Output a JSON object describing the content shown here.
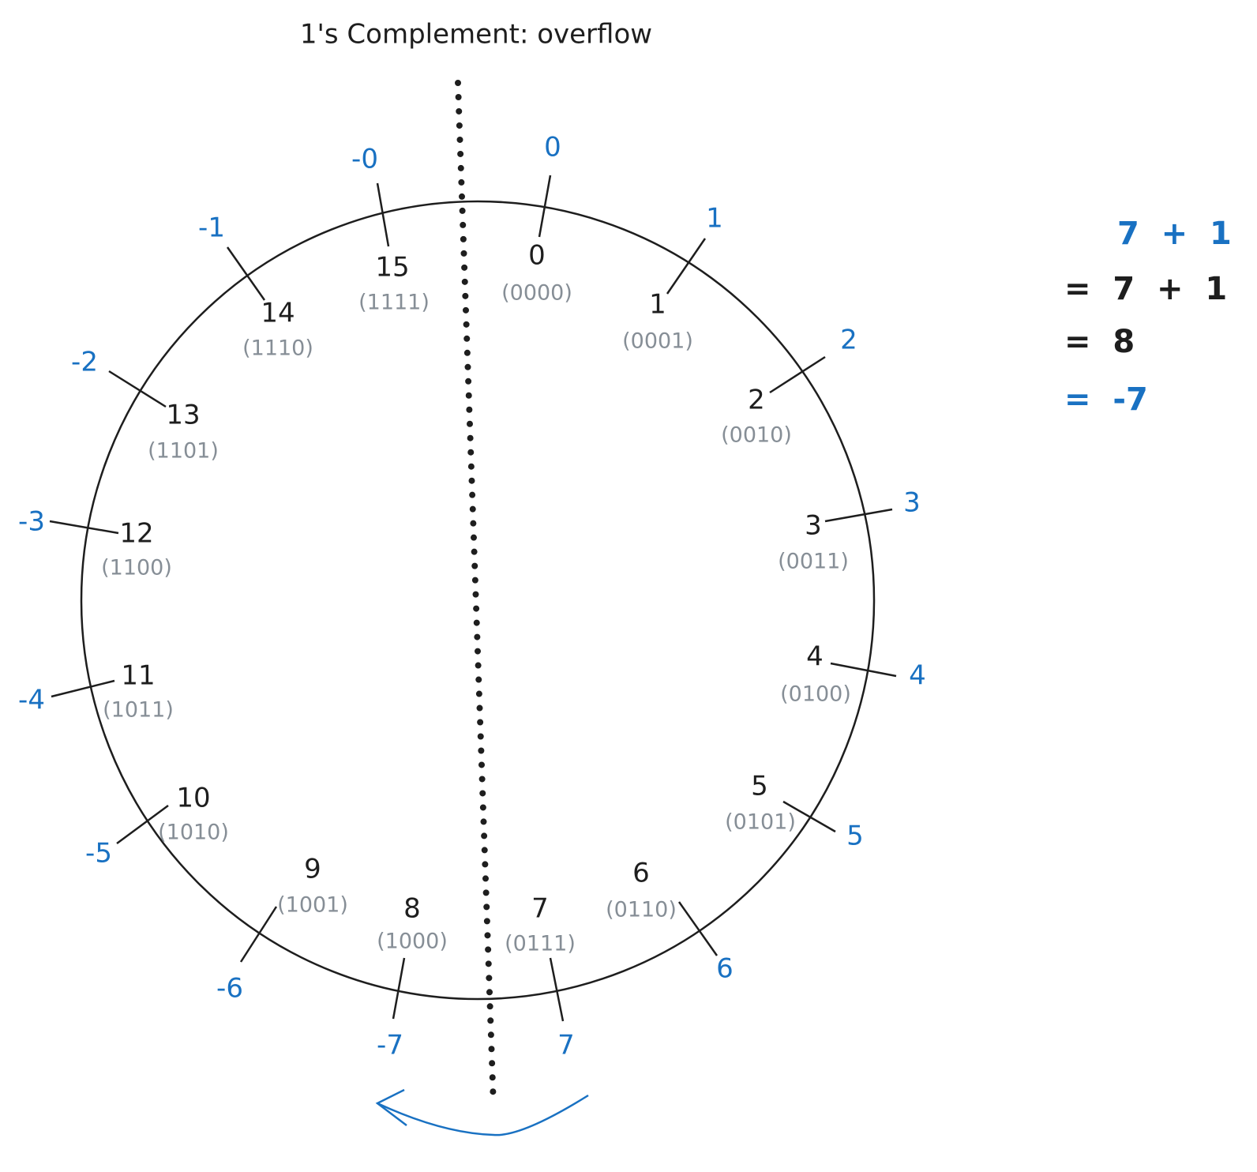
{
  "title": "1's Complement: overflow",
  "nodes": [
    {
      "unsigned": "0",
      "binary": "(0000)",
      "signed": "0"
    },
    {
      "unsigned": "1",
      "binary": "(0001)",
      "signed": "1"
    },
    {
      "unsigned": "2",
      "binary": "(0010)",
      "signed": "2"
    },
    {
      "unsigned": "3",
      "binary": "(0011)",
      "signed": "3"
    },
    {
      "unsigned": "4",
      "binary": "(0100)",
      "signed": "4"
    },
    {
      "unsigned": "5",
      "binary": "(0101)",
      "signed": "5"
    },
    {
      "unsigned": "6",
      "binary": "(0110)",
      "signed": "6"
    },
    {
      "unsigned": "7",
      "binary": "(0111)",
      "signed": "7"
    },
    {
      "unsigned": "8",
      "binary": "(1000)",
      "signed": "-7"
    },
    {
      "unsigned": "9",
      "binary": "(1001)",
      "signed": "-6"
    },
    {
      "unsigned": "10",
      "binary": "(1010)",
      "signed": "-5"
    },
    {
      "unsigned": "11",
      "binary": "(1011)",
      "signed": "-4"
    },
    {
      "unsigned": "12",
      "binary": "(1100)",
      "signed": "-3"
    },
    {
      "unsigned": "13",
      "binary": "(1101)",
      "signed": "-2"
    },
    {
      "unsigned": "14",
      "binary": "(1110)",
      "signed": "-1"
    },
    {
      "unsigned": "15",
      "binary": "(1111)",
      "signed": "-0"
    }
  ],
  "equation": [
    "7  +  1",
    "=  7  +  1",
    "=  8",
    "=  -7"
  ]
}
